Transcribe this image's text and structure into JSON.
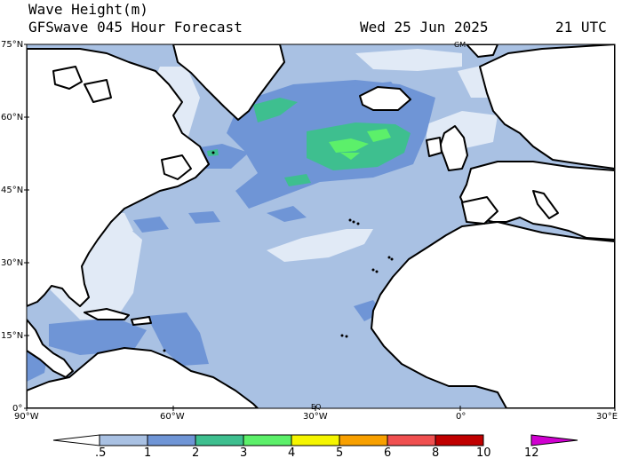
{
  "header": {
    "title": "Wave Height(m)",
    "subtitle": "GFSwave 045 Hour Forecast",
    "date": "Wed 25 Jun 2025",
    "time": "21 UTC"
  },
  "map": {
    "lat_labels": [
      "75°N",
      "60°N",
      "45°N",
      "30°N",
      "15°N",
      "0°"
    ],
    "lon_labels": [
      "90°W",
      "60°W",
      "30°W",
      "0°",
      "30°E"
    ],
    "markers": {
      "greenwich_top": "GM",
      "equator_label": "EQ"
    },
    "colors": {
      "land": "#ffffff",
      "coast": "#000000",
      "level_0_5_1": "#e1eaf6",
      "level_1_2": "#a9c1e3",
      "level_2_3": "#6f95d6",
      "level_3_4": "#3ebf8f",
      "level_4_5": "#5cf06a"
    }
  },
  "colorbar": {
    "labels": [
      ".5",
      "1",
      "2",
      "3",
      "4",
      "5",
      "6",
      "8",
      "10",
      "12"
    ],
    "colors": [
      "#e1eaf6",
      "#a9c1e3",
      "#6f95d6",
      "#3ebf8f",
      "#5cf06a",
      "#f5f500",
      "#f8a000",
      "#f05050",
      "#c00000",
      "#d000d0"
    ]
  }
}
